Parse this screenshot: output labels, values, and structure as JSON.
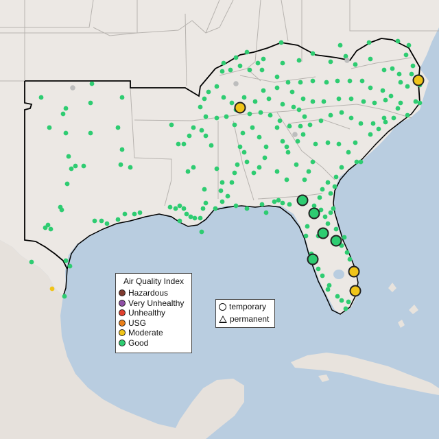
{
  "map": {
    "colors": {
      "water": "#b9cde0",
      "land": "#ece8e4",
      "mexico_land": "#e6e1dc",
      "state_border": "#b7b3af",
      "region_outline": "#000000",
      "marker_border": "#222222"
    },
    "aqi_legend": {
      "title": "Air Quality Index",
      "categories": [
        {
          "label": "Hazardous",
          "color": "#7e3a2f"
        },
        {
          "label": "Very Unhealthy",
          "color": "#8e4fa5"
        },
        {
          "label": "Unhealthy",
          "color": "#e0412f"
        },
        {
          "label": "USG",
          "color": "#ea7f1a"
        },
        {
          "label": "Moderate",
          "color": "#f0c419"
        },
        {
          "label": "Good",
          "color": "#2ecc71"
        }
      ]
    },
    "type_legend": {
      "items": [
        {
          "label": "temporary",
          "shape": "circle"
        },
        {
          "label": "permanent",
          "shape": "triangle"
        }
      ]
    },
    "monitor_summary": {
      "large_markers": [
        {
          "category": "Moderate",
          "type": "temporary"
        },
        {
          "category": "Moderate",
          "type": "temporary"
        },
        {
          "category": "Moderate",
          "type": "temporary"
        },
        {
          "category": "Moderate",
          "type": "temporary"
        },
        {
          "category": "Good",
          "type": "temporary"
        },
        {
          "category": "Good",
          "type": "temporary"
        },
        {
          "category": "Good",
          "type": "temporary"
        },
        {
          "category": "Good",
          "type": "temporary"
        },
        {
          "category": "Good",
          "type": "temporary"
        }
      ]
    }
  }
}
